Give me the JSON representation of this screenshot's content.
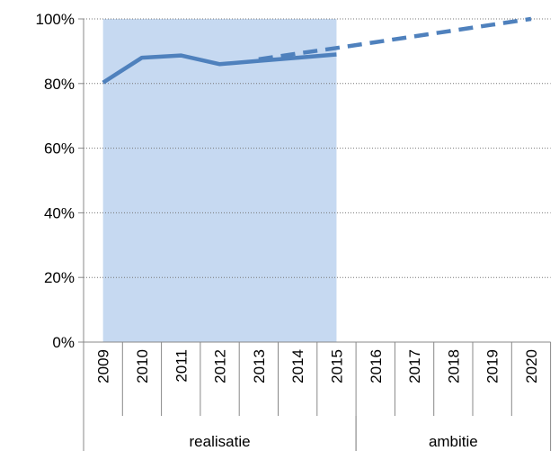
{
  "chart_data": {
    "type": "line",
    "categories": [
      "2009",
      "2010",
      "2011",
      "2012",
      "2013",
      "2014",
      "2015",
      "2016",
      "2017",
      "2018",
      "2019",
      "2020"
    ],
    "groups": [
      {
        "label": "realisatie",
        "span": [
          0,
          6
        ]
      },
      {
        "label": "ambitie",
        "span": [
          7,
          11
        ]
      }
    ],
    "series": [
      {
        "kind": "area",
        "color": "#c6d9f1",
        "values": [
          100,
          100,
          100,
          100,
          100,
          100,
          100,
          null,
          null,
          null,
          null,
          null
        ]
      },
      {
        "kind": "line",
        "line_style": "dashed",
        "color": "#4f81bd",
        "values": [
          null,
          null,
          null,
          null,
          87.5,
          89.3,
          91,
          92.8,
          94.6,
          96.4,
          98.2,
          100
        ]
      },
      {
        "kind": "line",
        "line_style": "solid",
        "color": "#4f81bd",
        "values": [
          80.3,
          88,
          88.7,
          86,
          87,
          88,
          89,
          null,
          null,
          null,
          null,
          null
        ]
      }
    ],
    "ylim": [
      0,
      100
    ],
    "yticks": [
      {
        "value": 0,
        "label": "0%"
      },
      {
        "value": 20,
        "label": "20%"
      },
      {
        "value": 40,
        "label": "40%"
      },
      {
        "value": 60,
        "label": "60%"
      },
      {
        "value": 80,
        "label": "80%"
      },
      {
        "value": 100,
        "label": "100%"
      }
    ],
    "grid": true
  }
}
